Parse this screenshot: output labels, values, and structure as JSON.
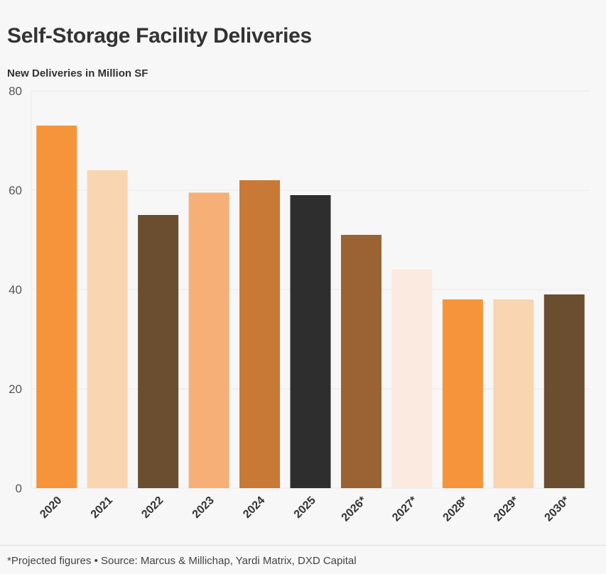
{
  "header": {
    "title": "Self-Storage Facility Deliveries",
    "subtitle": "New Deliveries in Million SF"
  },
  "footer": {
    "note": "*Projected figures • Source: Marcus & Millichap, Yardi Matrix, DXD Capital"
  },
  "chart_data": {
    "type": "bar",
    "title": "Self-Storage Facility Deliveries",
    "ylabel": "New Deliveries in Million SF",
    "xlabel": "",
    "categories": [
      "2020",
      "2021",
      "2022",
      "2023",
      "2024",
      "2025",
      "2026*",
      "2027*",
      "2028*",
      "2029*",
      "2030*"
    ],
    "values": [
      73,
      64,
      55,
      59.5,
      62,
      59,
      51,
      44,
      38,
      38,
      39
    ],
    "colors": [
      "#f5943b",
      "#f9d5b1",
      "#6b4d2f",
      "#f6b077",
      "#c77935",
      "#2e2e2e",
      "#9b6233",
      "#faeadf",
      "#f5943b",
      "#f9d5b1",
      "#6b4d2f"
    ],
    "ylim": [
      0,
      80
    ],
    "yticks": [
      0,
      20,
      40,
      60,
      80
    ],
    "grid": true,
    "legend": "none"
  }
}
